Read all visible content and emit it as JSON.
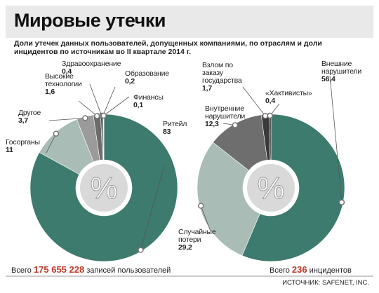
{
  "title": "Мировые утечки",
  "subtitle": "Доли утечек данных пользователей, допущенных компаниями, по отраслям и доли инцидентов по источникам во II квартале 2014 г.",
  "source": "ИСТОЧНИК: SAFENET, INC.",
  "chart_data": [
    {
      "type": "pie",
      "center_label": "%",
      "categories": [
        "Ритейл",
        "Госорганы",
        "Другое",
        "Высокие технологии",
        "Здравоохранение",
        "Образование",
        "Финансы"
      ],
      "values": [
        83,
        11,
        3.7,
        1.6,
        0.4,
        0.2,
        0.1
      ],
      "value_labels": [
        "83",
        "11",
        "3,7",
        "1,6",
        "0,4",
        "0,2",
        "0,1"
      ],
      "colors": [
        "#3d7b6f",
        "#a9bdb6",
        "#9b9b9b",
        "#6b6b6b",
        "#4a4a4a",
        "#333333",
        "#1f1f1f"
      ],
      "total_prefix": "Всего",
      "total": "175 655 228",
      "total_suffix": "записей пользователей"
    },
    {
      "type": "pie",
      "center_label": "%",
      "categories": [
        "Внешние нарушители",
        "Случайные потери",
        "Внутренние нарушители",
        "Взлом по заказу государства",
        "«Хактивисты»"
      ],
      "values": [
        56.4,
        29.2,
        12.3,
        1.7,
        0.4
      ],
      "value_labels": [
        "56,4",
        "29,2",
        "12,3",
        "1,7",
        "0,4"
      ],
      "colors": [
        "#3d7b6f",
        "#a9bdb6",
        "#6e6e6e",
        "#3a3a3a",
        "#1f1f1f"
      ],
      "total_prefix": "Всего",
      "total": 236,
      "total_suffix": "инцидентов"
    }
  ]
}
